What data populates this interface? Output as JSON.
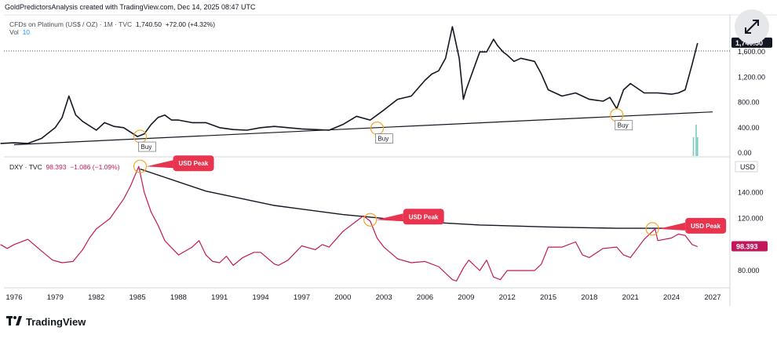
{
  "header": {
    "text": "GoldPredictorsAnalysis created with TradingView.com, Dec 14, 2025 08:47 UTC"
  },
  "colors": {
    "platinum_line": "#131722",
    "dxy_line": "#c2185b",
    "callout_bg": "#e8344e",
    "marker": "#f5a623",
    "volume": "#26a69a",
    "trend": "#131722"
  },
  "icons": {
    "expand": "expand-arrows-icon",
    "logo": "tradingview-logo-icon"
  },
  "top_pane": {
    "symbol": "CFDs on Platinum (US$ / OZ) · 1M · TVC",
    "last": "1,740.50",
    "change": "+72.00 (+4.32%)",
    "vol_label": "Vol",
    "vol_value": "10",
    "price_badge": "1,740.50"
  },
  "bottom_pane": {
    "symbol": "DXY · TVC",
    "last": "98.393",
    "change": "−1.086 (−1.09%)",
    "unit_label": "USD",
    "price_badge": "98.393"
  },
  "logo": {
    "text": "TradingView"
  },
  "chart_data": [
    {
      "type": "line",
      "name": "CFDs on Platinum (US$ / OZ)",
      "y_ticks": [
        "1,600.00",
        "1,200.00",
        "800.00",
        "400.00",
        "0.00"
      ],
      "y_tick_values": [
        1600,
        1200,
        800,
        400,
        0
      ],
      "x": [
        1975.0,
        1976.0,
        1977.0,
        1978.0,
        1979.0,
        1979.5,
        1980.0,
        1980.5,
        1981.0,
        1982.0,
        1982.6,
        1983.3,
        1984.0,
        1984.5,
        1985.0,
        1985.5,
        1986.0,
        1986.5,
        1987.0,
        1987.5,
        1988.0,
        1989.0,
        1990.0,
        1991.0,
        1992.0,
        1993.0,
        1994.0,
        1995.0,
        1996.0,
        1997.0,
        1998.0,
        1999.0,
        2000.0,
        2001.0,
        2002.0,
        2003.0,
        2004.0,
        2005.0,
        2006.0,
        2006.5,
        2007.0,
        2007.5,
        2008.0,
        2008.2,
        2008.5,
        2008.8,
        2009.0,
        2009.5,
        2010.0,
        2010.5,
        2011.0,
        2011.3,
        2011.7,
        2012.0,
        2012.5,
        2013.0,
        2014.0,
        2014.5,
        2015.0,
        2016.0,
        2017.0,
        2018.0,
        2019.0,
        2019.5,
        2020.0,
        2020.5,
        2021.0,
        2022.0,
        2023.0,
        2024.0,
        2024.5,
        2025.0,
        2025.5,
        2025.9
      ],
      "y": [
        150,
        160,
        150,
        230,
        400,
        560,
        900,
        600,
        500,
        360,
        480,
        420,
        400,
        330,
        260,
        300,
        450,
        560,
        600,
        520,
        520,
        480,
        480,
        400,
        370,
        360,
        400,
        420,
        400,
        380,
        370,
        360,
        450,
        580,
        520,
        680,
        850,
        900,
        1150,
        1250,
        1300,
        1500,
        2000,
        1800,
        1500,
        850,
        1000,
        1300,
        1600,
        1600,
        1800,
        1700,
        1600,
        1550,
        1450,
        1500,
        1450,
        1250,
        1000,
        900,
        950,
        850,
        820,
        880,
        700,
        1000,
        1100,
        950,
        950,
        930,
        950,
        1000,
        1400,
        1740.5
      ],
      "volume": [
        {
          "x": 2025.6,
          "v": 6
        },
        {
          "x": 2025.8,
          "v": 10
        },
        {
          "x": 2025.9,
          "v": 6
        }
      ],
      "trendline": {
        "from": {
          "x": 1976.0,
          "y": 130
        },
        "to": {
          "x": 2027.0,
          "y": 650
        }
      },
      "annotations": [
        {
          "label": "Buy",
          "x": 1985.2,
          "y": 260
        },
        {
          "label": "Buy",
          "x": 2002.5,
          "y": 390
        },
        {
          "label": "Buy",
          "x": 2020.0,
          "y": 600
        }
      ]
    },
    {
      "type": "line",
      "name": "DXY",
      "x_ticks": [
        "1976",
        "1979",
        "1982",
        "1985",
        "1988",
        "1991",
        "1994",
        "1997",
        "2000",
        "2003",
        "2006",
        "2009",
        "2012",
        "2015",
        "2018",
        "2021",
        "2024",
        "2027"
      ],
      "x_tick_values": [
        1976,
        1979,
        1982,
        1985,
        1988,
        1991,
        1994,
        1997,
        2000,
        2003,
        2006,
        2009,
        2012,
        2015,
        2018,
        2021,
        2024,
        2027
      ],
      "y_ticks": [
        "140.000",
        "120.000",
        "80.000"
      ],
      "y_tick_values": [
        140,
        120,
        80
      ],
      "x": [
        1975.0,
        1975.5,
        1976.0,
        1977.0,
        1978.0,
        1978.8,
        1979.5,
        1980.3,
        1981.0,
        1981.5,
        1982.0,
        1983.0,
        1984.0,
        1984.5,
        1985.1,
        1985.5,
        1986.0,
        1986.5,
        1987.0,
        1988.0,
        1989.0,
        1989.5,
        1990.0,
        1990.5,
        1991.0,
        1991.5,
        1992.0,
        1992.7,
        1993.5,
        1994.0,
        1995.0,
        1995.3,
        1996.0,
        1997.0,
        1998.0,
        1998.5,
        1999.0,
        2000.0,
        2001.0,
        2001.5,
        2002.0,
        2002.5,
        2003.0,
        2004.0,
        2005.0,
        2006.0,
        2007.0,
        2008.0,
        2008.3,
        2008.8,
        2009.2,
        2010.0,
        2010.5,
        2011.0,
        2011.5,
        2012.0,
        2013.0,
        2014.0,
        2014.5,
        2015.0,
        2016.0,
        2017.0,
        2017.5,
        2018.0,
        2019.0,
        2020.0,
        2020.5,
        2021.0,
        2022.0,
        2022.8,
        2023.0,
        2024.0,
        2024.5,
        2025.0,
        2025.5,
        2025.9
      ],
      "y": [
        100,
        97,
        100,
        104,
        95,
        88,
        86,
        87,
        96,
        105,
        112,
        120,
        135,
        145,
        160,
        140,
        125,
        115,
        103,
        92,
        98,
        103,
        92,
        87,
        86,
        91,
        84,
        90,
        94,
        94,
        85,
        84,
        88,
        99,
        96,
        100,
        98,
        110,
        118,
        122,
        118,
        105,
        98,
        89,
        86,
        87,
        83,
        73,
        72,
        82,
        88,
        80,
        88,
        75,
        73,
        80,
        80,
        80,
        85,
        98,
        98,
        102,
        92,
        90,
        97,
        98,
        92,
        90,
        104,
        112,
        103,
        105,
        108,
        107,
        100,
        98.4
      ],
      "curve": {
        "x": [
          1985.2,
          1990.0,
          1995.0,
          2000.0,
          2005.0,
          2010.0,
          2015.0,
          2020.0,
          2025.0,
          2026.5
        ],
        "y": [
          158,
          141,
          130,
          123,
          118,
          115,
          113.5,
          112.5,
          112.5,
          112.5
        ]
      },
      "annotations": [
        {
          "label": "USD Peak",
          "x": 1985.2,
          "y": 160
        },
        {
          "label": "USD Peak",
          "x": 2002.0,
          "y": 119
        },
        {
          "label": "USD Peak",
          "x": 2022.6,
          "y": 112
        }
      ]
    }
  ]
}
